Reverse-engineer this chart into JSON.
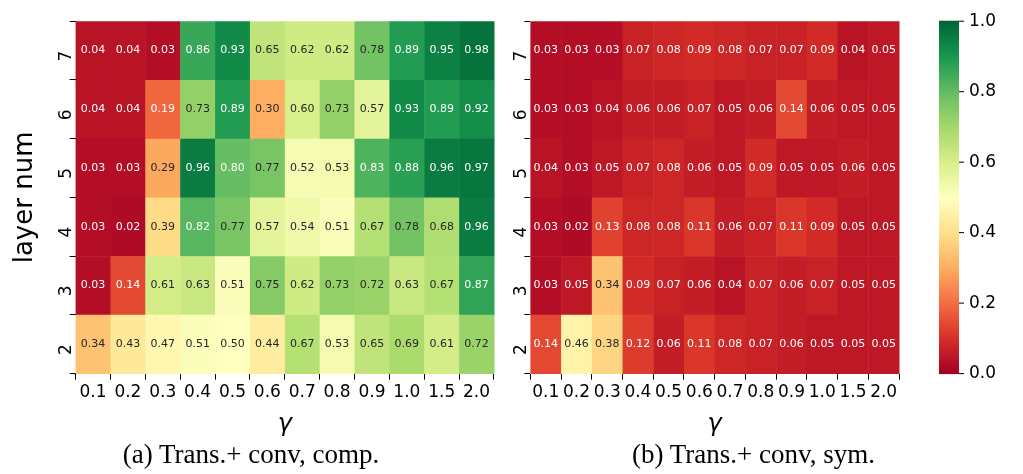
{
  "chart_data": [
    {
      "type": "heatmap",
      "title": "(a) Trans.+ conv, comp.",
      "xlabel": "γ",
      "ylabel": "layer num",
      "categories": [
        "0.1",
        "0.2",
        "0.3",
        "0.4",
        "0.5",
        "0.6",
        "0.7",
        "0.8",
        "0.9",
        "1.0",
        "1.5",
        "2.0"
      ],
      "y_categories": [
        "7",
        "6",
        "5",
        "4",
        "3",
        "2"
      ],
      "cells": [
        [
          0.04,
          0.04,
          0.03,
          0.86,
          0.93,
          0.65,
          0.62,
          0.62,
          0.78,
          0.89,
          0.95,
          0.98
        ],
        [
          0.04,
          0.04,
          0.19,
          0.73,
          0.89,
          0.3,
          0.6,
          0.73,
          0.57,
          0.93,
          0.89,
          0.92
        ],
        [
          0.03,
          0.03,
          0.29,
          0.96,
          0.8,
          0.77,
          0.52,
          0.53,
          0.83,
          0.88,
          0.96,
          0.97
        ],
        [
          0.03,
          0.02,
          0.39,
          0.82,
          0.77,
          0.57,
          0.54,
          0.51,
          0.67,
          0.78,
          0.68,
          0.96
        ],
        [
          0.03,
          0.14,
          0.61,
          0.63,
          0.51,
          0.75,
          0.62,
          0.73,
          0.72,
          0.63,
          0.67,
          0.87
        ],
        [
          0.34,
          0.43,
          0.47,
          0.51,
          0.5,
          0.44,
          0.67,
          0.53,
          0.65,
          0.69,
          0.61,
          0.72
        ]
      ],
      "cell_labels": [
        [
          "0.04",
          "0.04",
          "0.03",
          "0.86",
          "0.93",
          "0.65",
          "0.62",
          "0.62",
          "0.78",
          "0.89",
          "0.95",
          "0.98"
        ],
        [
          "0.04",
          "0.04",
          "0.19",
          "0.73",
          "0.89",
          "0.30",
          "0.60",
          "0.73",
          "0.57",
          "0.93",
          "0.89",
          "0.92"
        ],
        [
          "0.03",
          "0.03",
          "0.29",
          "0.96",
          "0.80",
          "0.77",
          "0.52",
          "0.53",
          "0.83",
          "0.88",
          "0.96",
          "0.97"
        ],
        [
          "0.03",
          "0.02",
          "0.39",
          "0.82",
          "0.77",
          "0.57",
          "0.54",
          "0.51",
          "0.67",
          "0.78",
          "0.68",
          "0.96"
        ],
        [
          "0.03",
          "0.14",
          "0.61",
          "0.63",
          "0.51",
          "0.75",
          "0.62",
          "0.73",
          "0.72",
          "0.63",
          "0.67",
          "0.87"
        ],
        [
          "0.34",
          "0.43",
          "0.47",
          "0.51",
          "0.50",
          "0.44",
          "0.67",
          "0.53",
          "0.65",
          "0.69",
          "0.61",
          "0.72"
        ]
      ],
      "data_labels": true
    },
    {
      "type": "heatmap",
      "title": "(b) Trans.+ conv, sym.",
      "xlabel": "γ",
      "categories": [
        "0.1",
        "0.2",
        "0.3",
        "0.4",
        "0.5",
        "0.6",
        "0.7",
        "0.8",
        "0.9",
        "1.0",
        "1.5",
        "2.0"
      ],
      "y_categories": [
        "7",
        "6",
        "5",
        "4",
        "3",
        "2"
      ],
      "cells": [
        [
          0.03,
          0.03,
          0.03,
          0.07,
          0.08,
          0.09,
          0.08,
          0.07,
          0.07,
          0.09,
          0.04,
          0.05
        ],
        [
          0.03,
          0.03,
          0.04,
          0.06,
          0.06,
          0.07,
          0.05,
          0.06,
          0.14,
          0.06,
          0.05,
          0.05
        ],
        [
          0.04,
          0.03,
          0.05,
          0.07,
          0.08,
          0.06,
          0.05,
          0.09,
          0.05,
          0.05,
          0.06,
          0.05
        ],
        [
          0.03,
          0.02,
          0.13,
          0.08,
          0.08,
          0.11,
          0.06,
          0.07,
          0.11,
          0.09,
          0.05,
          0.05
        ],
        [
          0.03,
          0.05,
          0.34,
          0.09,
          0.07,
          0.06,
          0.04,
          0.07,
          0.06,
          0.07,
          0.05,
          0.05
        ],
        [
          0.14,
          0.46,
          0.38,
          0.12,
          0.06,
          0.11,
          0.08,
          0.07,
          0.06,
          0.05,
          0.05,
          0.05
        ]
      ],
      "data_labels": true,
      "clim": [
        0,
        1
      ],
      "cticks": [
        {
          "value": 0,
          "label": "0.0"
        },
        {
          "value": 0.2,
          "label": "0.2"
        },
        {
          "value": 0.4,
          "label": "0.4"
        },
        {
          "value": 0.6,
          "label": "0.6"
        },
        {
          "value": 0.8,
          "label": "0.8"
        },
        {
          "value": 1,
          "label": "1.0"
        }
      ]
    }
  ]
}
